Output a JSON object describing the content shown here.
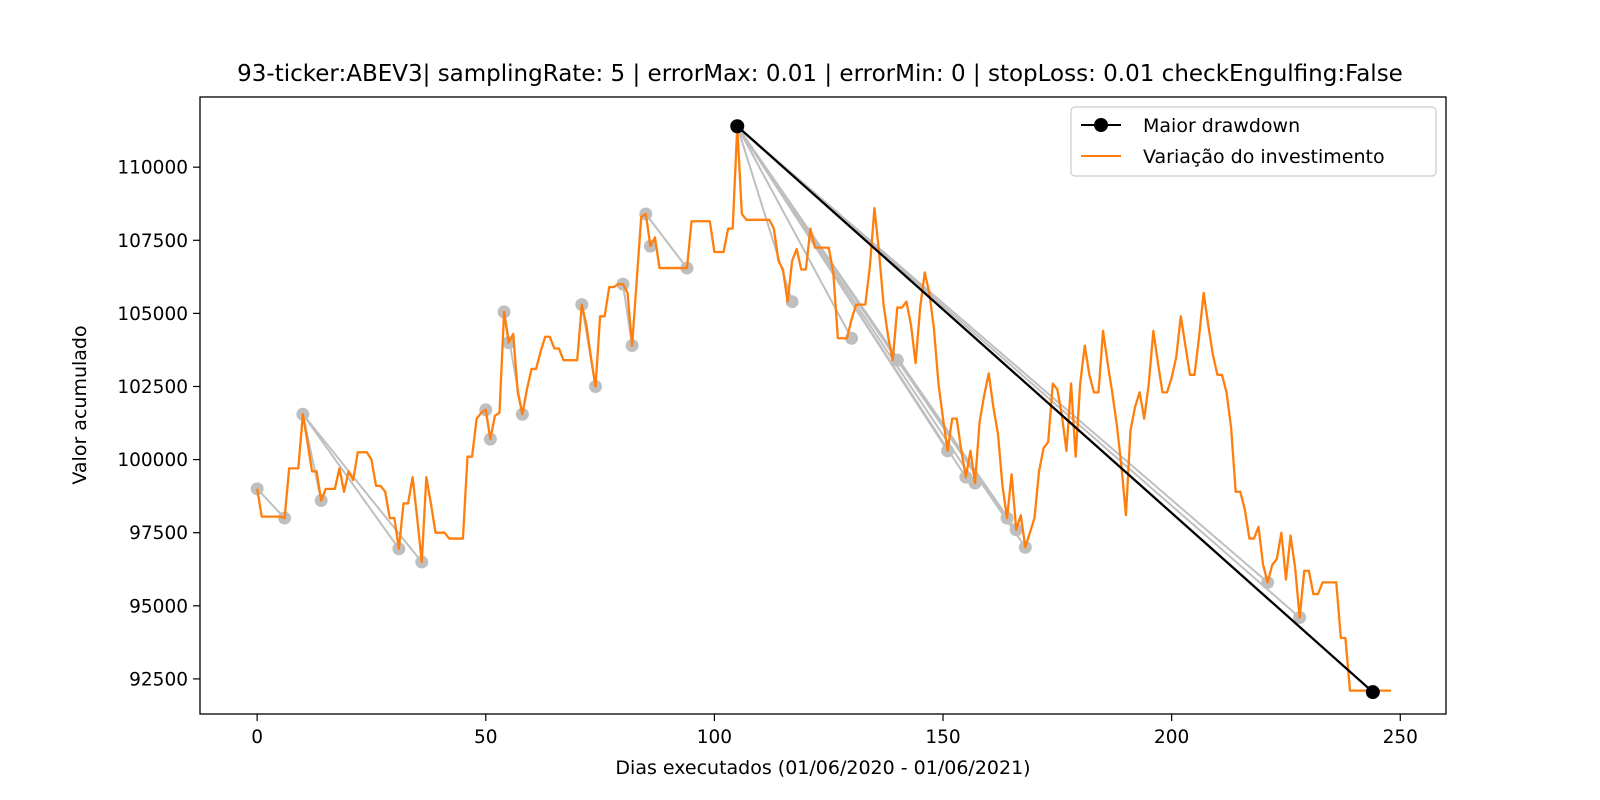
{
  "chart_data": {
    "type": "line",
    "title": "93-ticker:ABEV3| samplingRate: 5 | errorMax: 0.01 | errorMin: 0 | stopLoss: 0.01 checkEngulfing:False",
    "xlabel": "Dias executados (01/06/2020 - 01/06/2021)",
    "ylabel": "Valor acumulado",
    "xlim": [
      -12.5,
      260
    ],
    "ylim": [
      91300,
      112400
    ],
    "x_ticks": [
      0,
      50,
      100,
      150,
      200,
      250
    ],
    "x_tick_labels": [
      "0",
      "50",
      "100",
      "150",
      "200",
      "250"
    ],
    "y_ticks": [
      92500,
      95000,
      97500,
      100000,
      102500,
      105000,
      107500,
      110000
    ],
    "y_tick_labels": [
      "92500",
      "95000",
      "97500",
      "100000",
      "102500",
      "105000",
      "107500",
      "110000"
    ],
    "grid": false,
    "legend_position": "upper right",
    "legend": [
      {
        "label": "Maior drawdown",
        "color": "#000000",
        "marker": "circle"
      },
      {
        "label": "Variação do investimento",
        "color": "#ff7f0e",
        "marker": "none"
      }
    ],
    "series": [
      {
        "name": "Variação do investimento",
        "color": "#ff7f0e",
        "points": [
          [
            0,
            99000
          ],
          [
            1,
            98050
          ],
          [
            2,
            98050
          ],
          [
            3,
            98050
          ],
          [
            4,
            98050
          ],
          [
            5,
            98050
          ],
          [
            6,
            98000
          ],
          [
            7,
            99700
          ],
          [
            8,
            99700
          ],
          [
            9,
            99700
          ],
          [
            10,
            101550
          ],
          [
            11,
            100600
          ],
          [
            12,
            99600
          ],
          [
            13,
            99600
          ],
          [
            14,
            98600
          ],
          [
            15,
            99000
          ],
          [
            16,
            99000
          ],
          [
            17,
            99000
          ],
          [
            18,
            99700
          ],
          [
            19,
            98900
          ],
          [
            20,
            99600
          ],
          [
            21,
            99300
          ],
          [
            22,
            100250
          ],
          [
            23,
            100250
          ],
          [
            24,
            100250
          ],
          [
            25,
            100000
          ],
          [
            26,
            99100
          ],
          [
            27,
            99100
          ],
          [
            28,
            98900
          ],
          [
            29,
            98000
          ],
          [
            30,
            98000
          ],
          [
            31,
            96950
          ],
          [
            32,
            98500
          ],
          [
            33,
            98500
          ],
          [
            34,
            99400
          ],
          [
            35,
            98000
          ],
          [
            36,
            96500
          ],
          [
            37,
            99400
          ],
          [
            38,
            98500
          ],
          [
            39,
            97500
          ],
          [
            40,
            97500
          ],
          [
            41,
            97500
          ],
          [
            42,
            97300
          ],
          [
            43,
            97300
          ],
          [
            44,
            97300
          ],
          [
            45,
            97300
          ],
          [
            46,
            100100
          ],
          [
            47,
            100100
          ],
          [
            48,
            101400
          ],
          [
            49,
            101600
          ],
          [
            50,
            101700
          ],
          [
            51,
            100700
          ],
          [
            52,
            101500
          ],
          [
            53,
            101600
          ],
          [
            54,
            105050
          ],
          [
            55,
            104000
          ],
          [
            56,
            104300
          ],
          [
            57,
            102300
          ],
          [
            58,
            101550
          ],
          [
            59,
            102400
          ],
          [
            60,
            103100
          ],
          [
            61,
            103100
          ],
          [
            62,
            103700
          ],
          [
            63,
            104200
          ],
          [
            64,
            104200
          ],
          [
            65,
            103800
          ],
          [
            66,
            103800
          ],
          [
            67,
            103400
          ],
          [
            68,
            103400
          ],
          [
            69,
            103400
          ],
          [
            70,
            103400
          ],
          [
            71,
            105300
          ],
          [
            72,
            104600
          ],
          [
            73,
            103500
          ],
          [
            74,
            102500
          ],
          [
            75,
            104900
          ],
          [
            76,
            104900
          ],
          [
            77,
            105900
          ],
          [
            78,
            105900
          ],
          [
            79,
            106000
          ],
          [
            80,
            106000
          ],
          [
            81,
            105700
          ],
          [
            82,
            103900
          ],
          [
            83,
            106100
          ],
          [
            84,
            108300
          ],
          [
            85,
            108400
          ],
          [
            86,
            107300
          ],
          [
            87,
            107600
          ],
          [
            88,
            106550
          ],
          [
            89,
            106550
          ],
          [
            90,
            106550
          ],
          [
            91,
            106550
          ],
          [
            92,
            106550
          ],
          [
            93,
            106550
          ],
          [
            94,
            106550
          ],
          [
            95,
            108150
          ],
          [
            96,
            108150
          ],
          [
            97,
            108150
          ],
          [
            98,
            108150
          ],
          [
            99,
            108150
          ],
          [
            100,
            107100
          ],
          [
            101,
            107100
          ],
          [
            102,
            107100
          ],
          [
            103,
            107900
          ],
          [
            104,
            107900
          ],
          [
            105,
            111400
          ],
          [
            106,
            108400
          ],
          [
            107,
            108200
          ],
          [
            108,
            108200
          ],
          [
            109,
            108200
          ],
          [
            110,
            108200
          ],
          [
            111,
            108200
          ],
          [
            112,
            108200
          ],
          [
            113,
            107900
          ],
          [
            114,
            106800
          ],
          [
            115,
            106500
          ],
          [
            116,
            105400
          ],
          [
            117,
            106800
          ],
          [
            118,
            107200
          ],
          [
            119,
            106500
          ],
          [
            120,
            106500
          ],
          [
            121,
            107900
          ],
          [
            122,
            107250
          ],
          [
            123,
            107250
          ],
          [
            124,
            107250
          ],
          [
            125,
            107250
          ],
          [
            126,
            106400
          ],
          [
            127,
            104150
          ],
          [
            128,
            104150
          ],
          [
            129,
            104150
          ],
          [
            130,
            104800
          ],
          [
            131,
            105300
          ],
          [
            132,
            105300
          ],
          [
            133,
            105300
          ],
          [
            134,
            106600
          ],
          [
            135,
            108600
          ],
          [
            136,
            107100
          ],
          [
            137,
            105300
          ],
          [
            138,
            104200
          ],
          [
            139,
            103400
          ],
          [
            140,
            105200
          ],
          [
            141,
            105200
          ],
          [
            142,
            105400
          ],
          [
            143,
            104600
          ],
          [
            144,
            103300
          ],
          [
            145,
            105200
          ],
          [
            146,
            106400
          ],
          [
            147,
            105700
          ],
          [
            148,
            104500
          ],
          [
            149,
            102600
          ],
          [
            150,
            101400
          ],
          [
            151,
            100300
          ],
          [
            152,
            101400
          ],
          [
            153,
            101400
          ],
          [
            154,
            100300
          ],
          [
            155,
            99400
          ],
          [
            156,
            100300
          ],
          [
            157,
            99200
          ],
          [
            158,
            101300
          ],
          [
            159,
            102200
          ],
          [
            160,
            102950
          ],
          [
            161,
            101800
          ],
          [
            162,
            100900
          ],
          [
            163,
            99100
          ],
          [
            164,
            98000
          ],
          [
            165,
            99500
          ],
          [
            166,
            97600
          ],
          [
            167,
            98100
          ],
          [
            168,
            97000
          ],
          [
            169,
            97500
          ],
          [
            170,
            98000
          ],
          [
            171,
            99600
          ],
          [
            172,
            100400
          ],
          [
            173,
            100600
          ],
          [
            174,
            102600
          ],
          [
            175,
            102400
          ],
          [
            176,
            101500
          ],
          [
            177,
            100300
          ],
          [
            178,
            102600
          ],
          [
            179,
            100100
          ],
          [
            180,
            102600
          ],
          [
            181,
            103900
          ],
          [
            182,
            102900
          ],
          [
            183,
            102300
          ],
          [
            184,
            102300
          ],
          [
            185,
            104400
          ],
          [
            186,
            103300
          ],
          [
            187,
            102300
          ],
          [
            188,
            101200
          ],
          [
            189,
            99800
          ],
          [
            190,
            98100
          ],
          [
            191,
            101000
          ],
          [
            192,
            101800
          ],
          [
            193,
            102300
          ],
          [
            194,
            101400
          ],
          [
            195,
            102600
          ],
          [
            196,
            104400
          ],
          [
            197,
            103300
          ],
          [
            198,
            102300
          ],
          [
            199,
            102300
          ],
          [
            200,
            102800
          ],
          [
            201,
            103500
          ],
          [
            202,
            104900
          ],
          [
            203,
            103900
          ],
          [
            204,
            102900
          ],
          [
            205,
            102900
          ],
          [
            206,
            104200
          ],
          [
            207,
            105700
          ],
          [
            208,
            104600
          ],
          [
            209,
            103600
          ],
          [
            210,
            102900
          ],
          [
            211,
            102900
          ],
          [
            212,
            102300
          ],
          [
            213,
            101100
          ],
          [
            214,
            98900
          ],
          [
            215,
            98900
          ],
          [
            216,
            98300
          ],
          [
            217,
            97300
          ],
          [
            218,
            97300
          ],
          [
            219,
            97700
          ],
          [
            220,
            96400
          ],
          [
            221,
            95800
          ],
          [
            222,
            96400
          ],
          [
            223,
            96600
          ],
          [
            224,
            97500
          ],
          [
            225,
            95900
          ],
          [
            226,
            97400
          ],
          [
            227,
            96300
          ],
          [
            228,
            94600
          ],
          [
            229,
            96200
          ],
          [
            230,
            96200
          ],
          [
            231,
            95400
          ],
          [
            232,
            95400
          ],
          [
            233,
            95800
          ],
          [
            234,
            95800
          ],
          [
            235,
            95800
          ],
          [
            236,
            95800
          ],
          [
            237,
            93900
          ],
          [
            238,
            93900
          ],
          [
            239,
            92100
          ],
          [
            240,
            92100
          ],
          [
            241,
            92100
          ],
          [
            242,
            92100
          ],
          [
            243,
            92100
          ],
          [
            244,
            92100
          ],
          [
            245,
            92100
          ],
          [
            246,
            92100
          ],
          [
            247,
            92100
          ],
          [
            248,
            92100
          ]
        ]
      },
      {
        "name": "Maior drawdown",
        "color": "#000000",
        "points": [
          [
            105,
            111400
          ],
          [
            244,
            92050
          ]
        ]
      }
    ],
    "gray_segments": {
      "color": "#bfbfbf",
      "items": [
        {
          "from": [
            0,
            99000
          ],
          "to": [
            6,
            98000
          ]
        },
        {
          "from": [
            10,
            101550
          ],
          "to": [
            14,
            98600
          ]
        },
        {
          "from": [
            10,
            101550
          ],
          "to": [
            31,
            96950
          ]
        },
        {
          "from": [
            10,
            101550
          ],
          "to": [
            36,
            96500
          ]
        },
        {
          "from": [
            50,
            101700
          ],
          "to": [
            51,
            100700
          ]
        },
        {
          "from": [
            54,
            105050
          ],
          "to": [
            55,
            104000
          ]
        },
        {
          "from": [
            54,
            105050
          ],
          "to": [
            58,
            101550
          ]
        },
        {
          "from": [
            71,
            105300
          ],
          "to": [
            74,
            102500
          ]
        },
        {
          "from": [
            80,
            106000
          ],
          "to": [
            82,
            103900
          ]
        },
        {
          "from": [
            85,
            108400
          ],
          "to": [
            86,
            107300
          ]
        },
        {
          "from": [
            85,
            108400
          ],
          "to": [
            94,
            106550
          ]
        },
        {
          "from": [
            105,
            111400
          ],
          "to": [
            117,
            105400
          ]
        },
        {
          "from": [
            105,
            111400
          ],
          "to": [
            130,
            104150
          ]
        },
        {
          "from": [
            105,
            111400
          ],
          "to": [
            140,
            103400
          ]
        },
        {
          "from": [
            105,
            111400
          ],
          "to": [
            151,
            100300
          ]
        },
        {
          "from": [
            105,
            111400
          ],
          "to": [
            155,
            99400
          ]
        },
        {
          "from": [
            105,
            111400
          ],
          "to": [
            157,
            99200
          ]
        },
        {
          "from": [
            105,
            111400
          ],
          "to": [
            164,
            98000
          ]
        },
        {
          "from": [
            105,
            111400
          ],
          "to": [
            166,
            97600
          ]
        },
        {
          "from": [
            105,
            111400
          ],
          "to": [
            168,
            97000
          ]
        },
        {
          "from": [
            105,
            111400
          ],
          "to": [
            221,
            95800
          ]
        },
        {
          "from": [
            105,
            111400
          ],
          "to": [
            228,
            94600
          ]
        }
      ]
    }
  }
}
